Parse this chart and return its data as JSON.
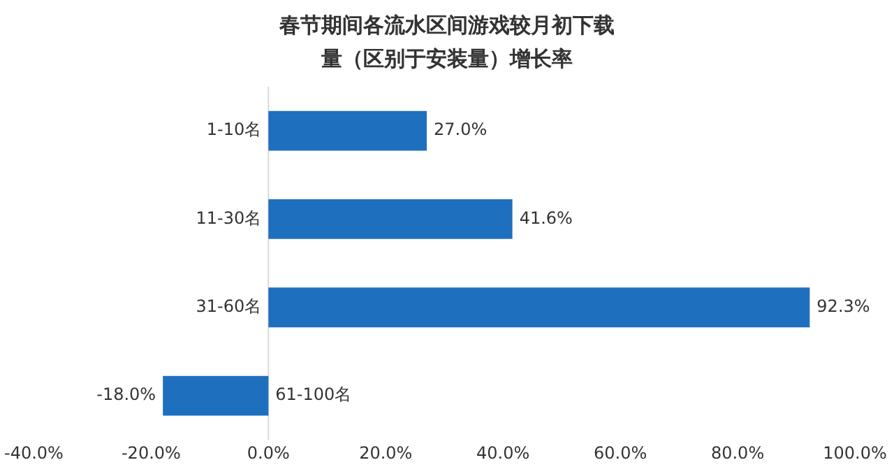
{
  "chart_data": {
    "type": "bar",
    "orientation": "horizontal",
    "title": "春节期间各流水区间游戏较月初下载量（区别于安装量）增长率",
    "categories": [
      "1-10名",
      "11-30名",
      "31-60名",
      "61-100名"
    ],
    "values": [
      27.0,
      41.6,
      92.3,
      -18.0
    ],
    "value_labels": [
      "27.0%",
      "41.6%",
      "92.3%",
      "-18.0%"
    ],
    "color": "#1f6fbf",
    "xlim": [
      -40,
      100
    ],
    "xticks": [
      {
        "value": -40,
        "label": "-40.0%"
      },
      {
        "value": -20,
        "label": "-20.0%"
      },
      {
        "value": 0,
        "label": "0.0%"
      },
      {
        "value": 20,
        "label": "20.0%"
      },
      {
        "value": 40,
        "label": "40.0%"
      },
      {
        "value": 60,
        "label": "60.0%"
      },
      {
        "value": 80,
        "label": "80.0%"
      },
      {
        "value": 100,
        "label": "100.0%"
      }
    ],
    "grid": false,
    "legend": false
  }
}
